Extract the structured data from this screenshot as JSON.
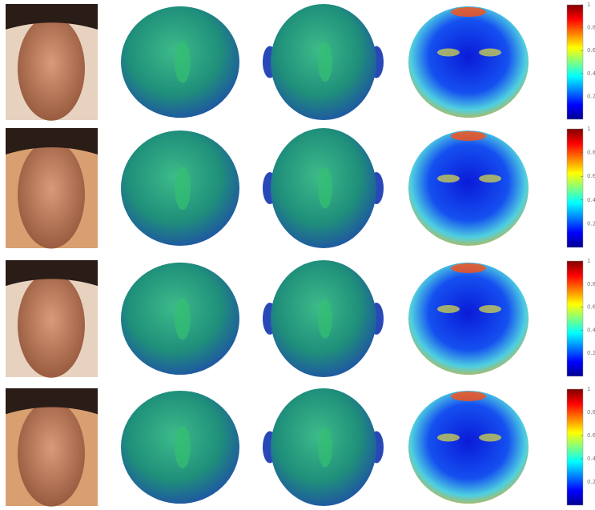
{
  "colorbars": [
    {
      "lim": [
        0,
        1
      ],
      "ticks": [
        1,
        0.8,
        0.6,
        0.4,
        0.2
      ]
    },
    {
      "lim": [
        0,
        1
      ],
      "ticks": [
        1,
        0.8,
        0.6,
        0.4,
        0.2
      ]
    },
    {
      "lim": [
        0,
        1
      ],
      "ticks": [
        1,
        0.8,
        0.6,
        0.4,
        0.2
      ]
    },
    {
      "lim": [
        0,
        1
      ],
      "ticks": [
        1,
        0.8,
        0.6,
        0.4,
        0.2
      ]
    }
  ]
}
